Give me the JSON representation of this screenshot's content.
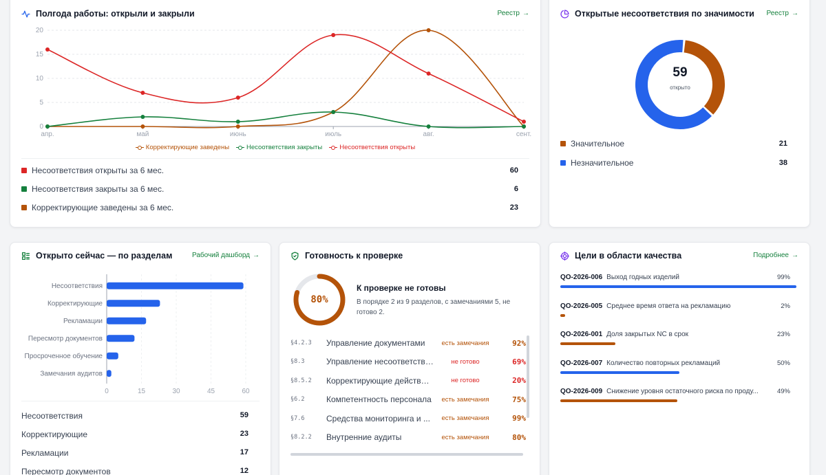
{
  "colors": {
    "red": "#dc2626",
    "green": "#15803d",
    "amber": "#b45309",
    "blue": "#2563eb",
    "track": "#e5e7eb"
  },
  "card1": {
    "title": "Полгода работы: открыли и закрыли",
    "link": "Реестр",
    "icon": "activity-icon",
    "legend": [
      "Корректирующие заведены",
      "Несоответствия закрыты",
      "Несоответствия открыты"
    ],
    "stats": [
      {
        "label": "Несоответствия открыты за 6 мес.",
        "value": "60",
        "color": "#dc2626"
      },
      {
        "label": "Несоответствия закрыты за 6 мес.",
        "value": "6",
        "color": "#15803d"
      },
      {
        "label": "Корректирующие заведены за 6 мес.",
        "value": "23",
        "color": "#b45309"
      }
    ]
  },
  "card2": {
    "title": "Открытые несоответствия по значимости",
    "link": "Реестр",
    "icon": "pie-chart-icon",
    "center_value": "59",
    "center_label": "открыто",
    "items": [
      {
        "label": "Значительное",
        "value": "21",
        "color": "#b45309"
      },
      {
        "label": "Незначительное",
        "value": "38",
        "color": "#2563eb"
      }
    ]
  },
  "card3": {
    "title": "Открыто сейчас — по разделам",
    "link": "Рабочий дашборд",
    "icon": "list-icon",
    "list": [
      {
        "label": "Несоответствия",
        "value": "59"
      },
      {
        "label": "Корректирующие",
        "value": "23"
      },
      {
        "label": "Рекламации",
        "value": "17"
      },
      {
        "label": "Пересмотр документов",
        "value": "12"
      }
    ]
  },
  "card4": {
    "title": "Готовность к проверке",
    "icon": "shield-icon",
    "percent_label": "80%",
    "percent": 0.8,
    "headline": "К проверке не готовы",
    "detail": "В порядке 2 из 9 разделов, с замечаниями 5, не готово 2.",
    "rows": [
      {
        "code": "§4.2.3",
        "name": "Управление документами",
        "status": "есть замечания",
        "pct": "92%",
        "bad": false
      },
      {
        "code": "§8.3",
        "name": "Управление несоответствиями",
        "status": "не готово",
        "pct": "69%",
        "bad": true
      },
      {
        "code": "§8.5.2",
        "name": "Корректирующие действия (CA...",
        "status": "не готово",
        "pct": "20%",
        "bad": true
      },
      {
        "code": "§6.2",
        "name": "Компетентность персонала",
        "status": "есть замечания",
        "pct": "75%",
        "bad": false
      },
      {
        "code": "§7.6",
        "name": "Средства мониторинга и ...",
        "status": "есть замечания",
        "pct": "99%",
        "bad": false
      },
      {
        "code": "§8.2.2",
        "name": "Внутренние аудиты",
        "status": "есть замечания",
        "pct": "80%",
        "bad": false
      }
    ]
  },
  "card5": {
    "title": "Цели в области качества",
    "link": "Подробнее",
    "icon": "target-icon",
    "goals": [
      {
        "id": "QO-2026-006",
        "name": "Выход годных изделий",
        "pct": "99%",
        "value": 0.99,
        "color": "#2563eb"
      },
      {
        "id": "QO-2026-005",
        "name": "Среднее время ответа на рекламацию",
        "pct": "2%",
        "value": 0.02,
        "color": "#b45309"
      },
      {
        "id": "QO-2026-001",
        "name": "Доля закрытых NC в срок",
        "pct": "23%",
        "value": 0.23,
        "color": "#b45309"
      },
      {
        "id": "QO-2026-007",
        "name": "Количество повторных рекламаций",
        "pct": "50%",
        "value": 0.5,
        "color": "#2563eb"
      },
      {
        "id": "QO-2026-009",
        "name": "Снижение уровня остаточного риска по проду...",
        "pct": "49%",
        "value": 0.49,
        "color": "#b45309"
      }
    ]
  },
  "chart_data": [
    {
      "type": "line",
      "x": [
        "апр.",
        "май",
        "июнь",
        "июль",
        "авг.",
        "сент."
      ],
      "ylim": [
        0,
        20
      ],
      "yticks": [
        0,
        5,
        10,
        15,
        20
      ],
      "grid": true,
      "legend": "bottom",
      "series": [
        {
          "name": "Корректирующие заведены",
          "color": "#b45309",
          "values": [
            0,
            0,
            0,
            3,
            20,
            0
          ]
        },
        {
          "name": "Несоответствия закрыты",
          "color": "#15803d",
          "values": [
            0,
            2,
            1,
            3,
            0,
            0
          ]
        },
        {
          "name": "Несоответствия открыты",
          "color": "#dc2626",
          "values": [
            16,
            7,
            6,
            19,
            11,
            1
          ]
        }
      ]
    },
    {
      "type": "pie",
      "categories": [
        "Значительное",
        "Незначительное"
      ],
      "values": [
        21,
        38
      ],
      "colors": [
        "#b45309",
        "#2563eb"
      ]
    },
    {
      "type": "bar",
      "orientation": "horizontal",
      "categories": [
        "Несоответствия",
        "Корректирующие",
        "Рекламации",
        "Пересмотр документов",
        "Просроченное обучение",
        "Замечания аудитов"
      ],
      "values": [
        59,
        23,
        17,
        12,
        5,
        2
      ],
      "xlim": [
        0,
        60
      ],
      "xticks": [
        0,
        15,
        30,
        45,
        60
      ],
      "color": "#2563eb"
    }
  ]
}
